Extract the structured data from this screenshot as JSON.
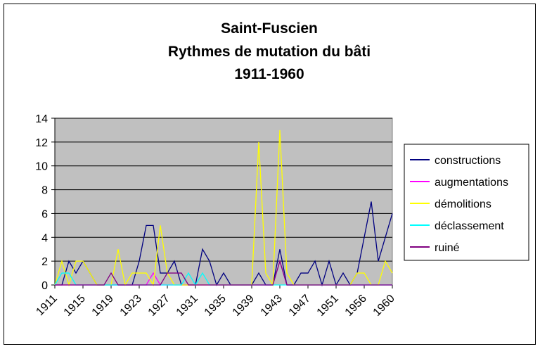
{
  "chart_data": {
    "type": "line",
    "title": [
      "Saint-Fuscien",
      "Rythmes de mutation du bâti",
      "1911-1960"
    ],
    "categories": [
      "1911",
      null,
      null,
      null,
      "1915",
      null,
      null,
      null,
      "1919",
      null,
      null,
      null,
      "1923",
      null,
      null,
      null,
      "1927",
      null,
      null,
      null,
      "1931",
      null,
      null,
      null,
      "1935",
      null,
      null,
      null,
      "1939",
      null,
      null,
      null,
      "1943",
      null,
      null,
      null,
      "1947",
      null,
      null,
      null,
      "1951",
      null,
      null,
      null,
      "1956",
      null,
      null,
      null,
      "1960"
    ],
    "series": [
      {
        "name": "constructions",
        "color": "#000080",
        "values": [
          0,
          0,
          2,
          1,
          2,
          1,
          0,
          0,
          0,
          0,
          0,
          0,
          2,
          5,
          5,
          1,
          1,
          2,
          0,
          0,
          0,
          3,
          2,
          0,
          1,
          0,
          0,
          0,
          0,
          1,
          0,
          0,
          3,
          0,
          0,
          1,
          1,
          2,
          0,
          2,
          0,
          1,
          0,
          1,
          4,
          7,
          2,
          4,
          6
        ]
      },
      {
        "name": "augmentations",
        "color": "#ff00ff",
        "values": [
          0,
          0,
          0,
          0,
          0,
          0,
          0,
          0,
          0,
          0,
          0,
          0,
          0,
          0,
          1,
          0,
          0,
          0,
          0,
          0,
          0,
          0,
          0,
          0,
          0,
          0,
          0,
          0,
          0,
          0,
          0,
          0,
          2,
          0,
          0,
          0,
          0,
          0,
          0,
          0,
          0,
          0,
          0,
          0,
          0,
          0,
          0,
          0,
          0
        ]
      },
      {
        "name": "démolitions",
        "color": "#ffff00",
        "values": [
          0,
          2,
          0,
          2,
          2,
          1,
          0,
          0,
          0,
          3,
          0,
          1,
          1,
          1,
          0,
          5,
          1,
          0,
          0,
          0,
          0,
          0,
          0,
          0,
          0,
          0,
          0,
          0,
          0,
          12,
          1,
          0,
          13,
          1,
          0,
          0,
          0,
          0,
          0,
          0,
          0,
          0,
          0,
          1,
          1,
          0,
          0,
          2,
          1
        ]
      },
      {
        "name": "déclassement",
        "color": "#00ffff",
        "values": [
          0,
          1,
          1,
          0,
          0,
          0,
          0,
          0,
          0,
          0,
          0,
          0,
          0,
          0,
          0,
          0,
          0,
          0,
          0,
          1,
          0,
          1,
          0,
          0,
          0,
          0,
          0,
          0,
          0,
          0,
          0,
          0,
          0,
          0,
          0,
          0,
          0,
          0,
          0,
          0,
          0,
          0,
          0,
          0,
          0,
          0,
          0,
          0,
          0
        ]
      },
      {
        "name": "ruiné",
        "color": "#800080",
        "values": [
          0,
          0,
          0,
          0,
          0,
          0,
          0,
          0,
          1,
          0,
          0,
          0,
          0,
          0,
          0,
          0,
          1,
          1,
          1,
          0,
          0,
          0,
          0,
          0,
          0,
          0,
          0,
          0,
          0,
          0,
          0,
          0,
          2,
          0,
          0,
          0,
          0,
          0,
          0,
          0,
          0,
          0,
          0,
          0,
          0,
          0,
          0,
          0,
          0
        ]
      }
    ],
    "ylim": [
      0,
      14
    ],
    "yticks": [
      0,
      2,
      4,
      6,
      8,
      10,
      12,
      14
    ],
    "grid": true,
    "legend": "right",
    "plot_background": "#c0c0c0"
  }
}
